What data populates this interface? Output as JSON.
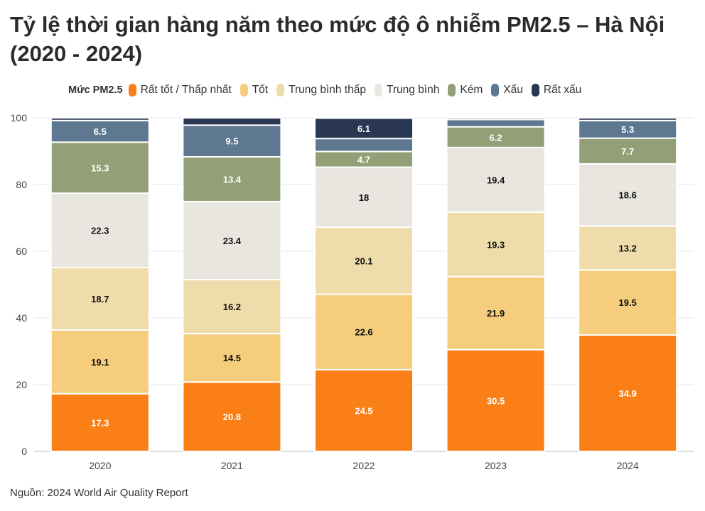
{
  "title": "Tỷ lệ thời gian hàng năm theo mức độ ô nhiễm PM2.5 – Hà Nội (2020 - 2024)",
  "legend_title": "Mức PM2.5",
  "source": "Nguồn: 2024 World Air Quality Report",
  "chart_data": {
    "type": "bar",
    "stacked": true,
    "title": "Tỷ lệ thời gian hàng năm theo mức độ ô nhiễm PM2.5 – Hà Nội (2020 - 2024)",
    "xlabel": "",
    "ylabel": "",
    "ylim": [
      0,
      100
    ],
    "yticks": [
      0,
      20,
      40,
      60,
      80,
      100
    ],
    "grid": true,
    "legend_position": "top",
    "categories": [
      "2020",
      "2021",
      "2022",
      "2023",
      "2024"
    ],
    "series": [
      {
        "name": "Rất tốt / Thấp nhất",
        "color": "#f97f16",
        "label_color": "#ffffff",
        "values": [
          17.3,
          20.8,
          24.5,
          30.5,
          34.9
        ]
      },
      {
        "name": "Tốt",
        "color": "#f5cd7c",
        "label_color": "#111111",
        "values": [
          19.1,
          14.5,
          22.6,
          21.9,
          19.5
        ]
      },
      {
        "name": "Trung bình thấp",
        "color": "#efdcab",
        "label_color": "#111111",
        "values": [
          18.7,
          16.2,
          20.1,
          19.3,
          13.2
        ]
      },
      {
        "name": "Trung bình",
        "color": "#e8e6df",
        "label_color": "#111111",
        "values": [
          22.3,
          23.4,
          18,
          19.4,
          18.6
        ]
      },
      {
        "name": "Kém",
        "color": "#93a077",
        "label_color": "#ffffff",
        "values": [
          15.3,
          13.4,
          4.7,
          6.2,
          7.7
        ]
      },
      {
        "name": "Xấu",
        "color": "#5d7890",
        "label_color": "#ffffff",
        "values": [
          6.5,
          9.5,
          3.9,
          2.2,
          5.3
        ]
      },
      {
        "name": "Rất xấu",
        "color": "#2a3752",
        "label_color": "#ffffff",
        "values": [
          0.8,
          2.2,
          6.1,
          0.5,
          0.8
        ]
      }
    ],
    "shown_labels": [
      [
        true,
        true,
        true,
        true,
        true
      ],
      [
        true,
        true,
        true,
        true,
        true
      ],
      [
        true,
        true,
        true,
        true,
        true
      ],
      [
        true,
        true,
        true,
        true,
        true
      ],
      [
        true,
        true,
        true,
        true,
        true
      ],
      [
        true,
        true,
        false,
        false,
        true
      ],
      [
        false,
        false,
        true,
        false,
        false
      ]
    ]
  }
}
